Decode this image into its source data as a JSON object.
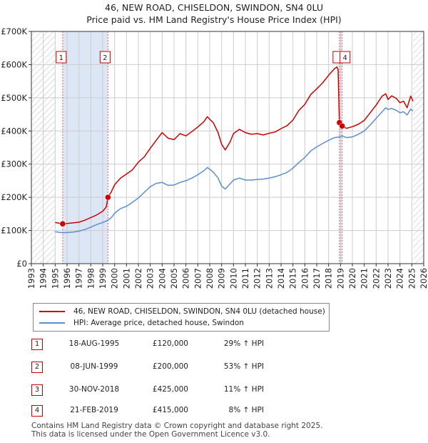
{
  "chart_data": {
    "type": "line",
    "title": "46, NEW ROAD, CHISELDON, SWINDON, SN4 0LU",
    "subtitle": "Price paid vs. HM Land Registry's House Price Index (HPI)",
    "xlim": [
      1993,
      2026
    ],
    "ylim": [
      0,
      700000
    ],
    "y_ticks": [
      0,
      100000,
      200000,
      300000,
      400000,
      500000,
      600000,
      700000
    ],
    "y_tick_labels": [
      "£0",
      "£100K",
      "£200K",
      "£300K",
      "£400K",
      "£500K",
      "£600K",
      "£700K"
    ],
    "x_ticks": [
      1993,
      1994,
      1995,
      1996,
      1997,
      1998,
      1999,
      2000,
      2001,
      2002,
      2003,
      2004,
      2005,
      2006,
      2007,
      2008,
      2009,
      2010,
      2011,
      2012,
      2013,
      2014,
      2015,
      2016,
      2017,
      2018,
      2019,
      2020,
      2021,
      2022,
      2023,
      2024,
      2025,
      2026
    ],
    "x_tick_labels": [
      "1993",
      "1994",
      "1995",
      "1996",
      "1997",
      "1998",
      "1999",
      "2000",
      "2001",
      "2002",
      "2003",
      "2004",
      "2005",
      "2006",
      "2007",
      "2008",
      "2009",
      "2010",
      "2011",
      "2012",
      "2013",
      "2014",
      "2015",
      "2016",
      "2017",
      "2018",
      "2019",
      "2020",
      "2021",
      "2022",
      "2023",
      "2024",
      "2025",
      "2026"
    ],
    "grid": true,
    "hatched_ranges": [
      [
        1993,
        1995.0
      ],
      [
        2025.1,
        2026
      ]
    ],
    "shaded_ranges": [
      [
        1995.63,
        1999.44
      ],
      [
        2018.91,
        2019.14
      ]
    ],
    "series": [
      {
        "name": "46, NEW ROAD, CHISELDON, SWINDON, SN4 0LU (detached house)",
        "color": "#cc0000",
        "points": [
          [
            1995.0,
            124000
          ],
          [
            1995.63,
            120000
          ],
          [
            1996.0,
            121000
          ],
          [
            1996.5,
            123000
          ],
          [
            1997.0,
            125000
          ],
          [
            1997.5,
            131000
          ],
          [
            1998.0,
            139000
          ],
          [
            1998.5,
            147000
          ],
          [
            1999.0,
            158000
          ],
          [
            1999.3,
            171000
          ],
          [
            1999.44,
            200000
          ],
          [
            1999.7,
            215000
          ],
          [
            2000.0,
            238000
          ],
          [
            2000.5,
            258000
          ],
          [
            2001.0,
            270000
          ],
          [
            2001.5,
            283000
          ],
          [
            2002.0,
            306000
          ],
          [
            2002.5,
            322000
          ],
          [
            2003.0,
            348000
          ],
          [
            2003.5,
            372000
          ],
          [
            2004.0,
            395000
          ],
          [
            2004.5,
            378000
          ],
          [
            2005.0,
            374000
          ],
          [
            2005.5,
            392000
          ],
          [
            2006.0,
            385000
          ],
          [
            2006.5,
            398000
          ],
          [
            2007.0,
            412000
          ],
          [
            2007.5,
            428000
          ],
          [
            2007.8,
            443000
          ],
          [
            2008.0,
            435000
          ],
          [
            2008.3,
            425000
          ],
          [
            2008.7,
            395000
          ],
          [
            2009.0,
            360000
          ],
          [
            2009.3,
            343000
          ],
          [
            2009.7,
            366000
          ],
          [
            2010.0,
            392000
          ],
          [
            2010.5,
            405000
          ],
          [
            2011.0,
            395000
          ],
          [
            2011.5,
            390000
          ],
          [
            2012.0,
            392000
          ],
          [
            2012.5,
            388000
          ],
          [
            2013.0,
            393000
          ],
          [
            2013.5,
            397000
          ],
          [
            2014.0,
            407000
          ],
          [
            2014.5,
            416000
          ],
          [
            2015.0,
            433000
          ],
          [
            2015.5,
            462000
          ],
          [
            2016.0,
            480000
          ],
          [
            2016.5,
            510000
          ],
          [
            2017.0,
            527000
          ],
          [
            2017.5,
            545000
          ],
          [
            2018.0,
            568000
          ],
          [
            2018.5,
            588000
          ],
          [
            2018.7,
            593000
          ],
          [
            2018.8,
            585000
          ],
          [
            2018.91,
            425000
          ],
          [
            2019.0,
            420000
          ],
          [
            2019.14,
            415000
          ],
          [
            2019.5,
            408000
          ],
          [
            2020.0,
            413000
          ],
          [
            2020.5,
            420000
          ],
          [
            2021.0,
            432000
          ],
          [
            2021.5,
            455000
          ],
          [
            2022.0,
            478000
          ],
          [
            2022.5,
            505000
          ],
          [
            2022.8,
            512000
          ],
          [
            2023.0,
            495000
          ],
          [
            2023.3,
            506000
          ],
          [
            2023.7,
            498000
          ],
          [
            2024.0,
            485000
          ],
          [
            2024.3,
            490000
          ],
          [
            2024.6,
            470000
          ],
          [
            2024.9,
            505000
          ],
          [
            2025.1,
            490000
          ]
        ]
      },
      {
        "name": "HPI: Average price, detached house, Swindon",
        "color": "#5b8fcf",
        "points": [
          [
            1995.0,
            96000
          ],
          [
            1995.63,
            93000
          ],
          [
            1996.0,
            94000
          ],
          [
            1996.5,
            95000
          ],
          [
            1997.0,
            98000
          ],
          [
            1997.5,
            103000
          ],
          [
            1998.0,
            110000
          ],
          [
            1998.5,
            118000
          ],
          [
            1999.0,
            124000
          ],
          [
            1999.44,
            131000
          ],
          [
            1999.7,
            138000
          ],
          [
            2000.0,
            152000
          ],
          [
            2000.5,
            166000
          ],
          [
            2001.0,
            173000
          ],
          [
            2001.5,
            185000
          ],
          [
            2002.0,
            198000
          ],
          [
            2002.5,
            215000
          ],
          [
            2003.0,
            232000
          ],
          [
            2003.5,
            242000
          ],
          [
            2004.0,
            245000
          ],
          [
            2004.5,
            236000
          ],
          [
            2005.0,
            237000
          ],
          [
            2005.5,
            245000
          ],
          [
            2006.0,
            250000
          ],
          [
            2006.5,
            258000
          ],
          [
            2007.0,
            268000
          ],
          [
            2007.5,
            280000
          ],
          [
            2007.8,
            290000
          ],
          [
            2008.0,
            285000
          ],
          [
            2008.3,
            276000
          ],
          [
            2008.7,
            258000
          ],
          [
            2009.0,
            234000
          ],
          [
            2009.3,
            225000
          ],
          [
            2009.7,
            240000
          ],
          [
            2010.0,
            252000
          ],
          [
            2010.5,
            258000
          ],
          [
            2011.0,
            252000
          ],
          [
            2011.5,
            252000
          ],
          [
            2012.0,
            254000
          ],
          [
            2012.5,
            255000
          ],
          [
            2013.0,
            258000
          ],
          [
            2013.5,
            262000
          ],
          [
            2014.0,
            268000
          ],
          [
            2014.5,
            275000
          ],
          [
            2015.0,
            288000
          ],
          [
            2015.5,
            305000
          ],
          [
            2016.0,
            320000
          ],
          [
            2016.5,
            340000
          ],
          [
            2017.0,
            352000
          ],
          [
            2017.5,
            362000
          ],
          [
            2018.0,
            372000
          ],
          [
            2018.5,
            380000
          ],
          [
            2018.91,
            382000
          ],
          [
            2019.14,
            385000
          ],
          [
            2019.5,
            380000
          ],
          [
            2020.0,
            382000
          ],
          [
            2020.5,
            390000
          ],
          [
            2021.0,
            400000
          ],
          [
            2021.5,
            418000
          ],
          [
            2022.0,
            438000
          ],
          [
            2022.5,
            458000
          ],
          [
            2022.8,
            470000
          ],
          [
            2023.0,
            465000
          ],
          [
            2023.3,
            468000
          ],
          [
            2023.7,
            462000
          ],
          [
            2024.0,
            455000
          ],
          [
            2024.3,
            458000
          ],
          [
            2024.6,
            448000
          ],
          [
            2024.9,
            466000
          ],
          [
            2025.1,
            460000
          ]
        ]
      }
    ],
    "sales": [
      {
        "num": "1",
        "x": 1995.63,
        "y": 120000
      },
      {
        "num": "2",
        "x": 1999.44,
        "y": 200000
      },
      {
        "num": "3",
        "x": 2018.91,
        "y": 425000
      },
      {
        "num": "4",
        "x": 2019.14,
        "y": 415000
      }
    ]
  },
  "legend": {
    "property": "46, NEW ROAD, CHISELDON, SWINDON, SN4 0LU (detached house)",
    "hpi": "HPI: Average price, detached house, Swindon"
  },
  "colors": {
    "property_line": "#cc0000",
    "hpi_line": "#5b8fcf",
    "shade": "#dde6f5",
    "grid": "#cccccc"
  },
  "table": [
    {
      "num": "1",
      "date": "18-AUG-1995",
      "price": "£120,000",
      "hpi": "29% ↑ HPI"
    },
    {
      "num": "2",
      "date": "08-JUN-1999",
      "price": "£200,000",
      "hpi": "53% ↑ HPI"
    },
    {
      "num": "3",
      "date": "30-NOV-2018",
      "price": "£425,000",
      "hpi": "11% ↑ HPI"
    },
    {
      "num": "4",
      "date": "21-FEB-2019",
      "price": "£415,000",
      "hpi": "8% ↑ HPI"
    }
  ],
  "footer": {
    "line1": "Contains HM Land Registry data © Crown copyright and database right 2025.",
    "line2": "This data is licensed under the Open Government Licence v3.0."
  }
}
